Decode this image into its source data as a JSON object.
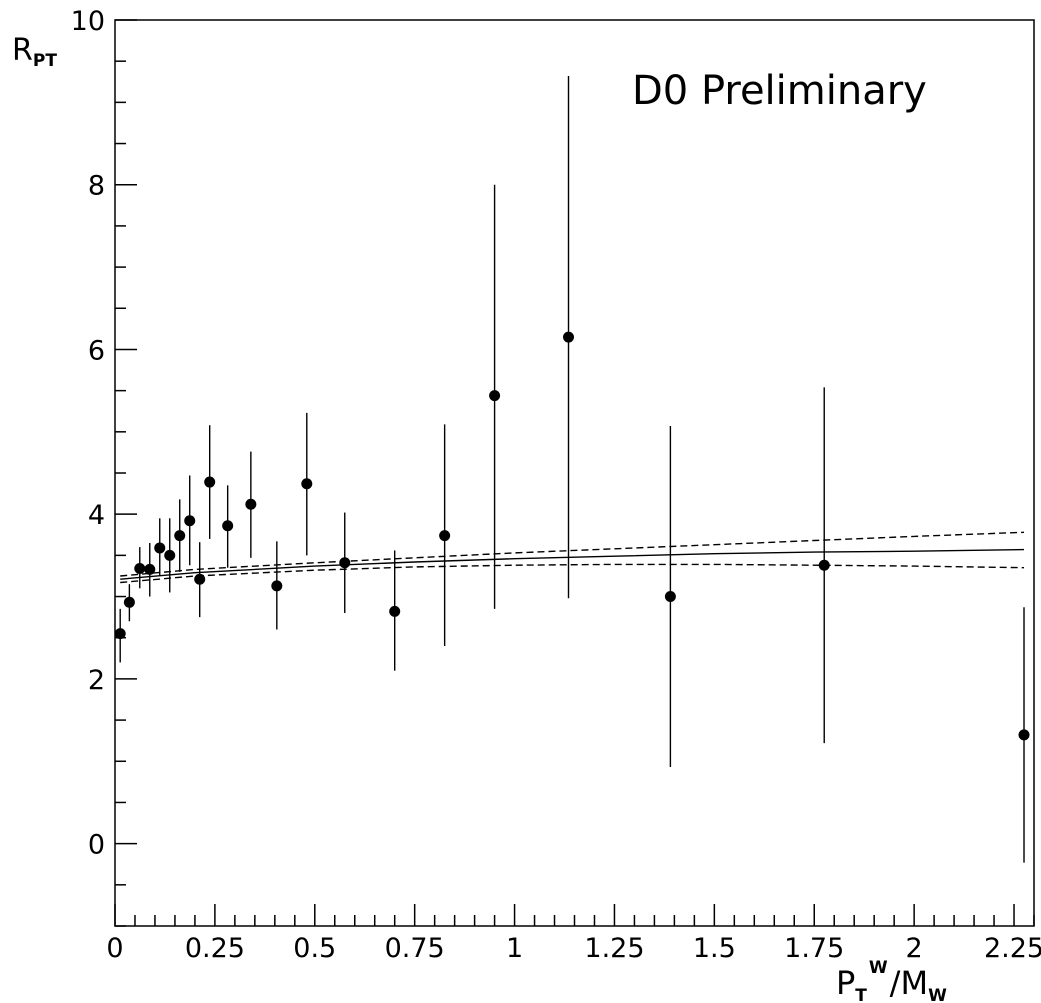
{
  "chart_data": {
    "type": "scatter",
    "title": "",
    "annotation": "D0 Preliminary",
    "xlabel": {
      "main": "P",
      "sub": "T",
      "sup": "W",
      "slash": "/",
      "main2": "M",
      "sub2": "W"
    },
    "ylabel": {
      "main": "R",
      "sub": "PT"
    },
    "xlim": [
      0,
      2.3
    ],
    "ylim": [
      -1,
      10
    ],
    "xticks": [
      {
        "value": 0,
        "label": "0"
      },
      {
        "value": 0.25,
        "label": "0.25"
      },
      {
        "value": 0.5,
        "label": "0.5"
      },
      {
        "value": 0.75,
        "label": "0.75"
      },
      {
        "value": 1,
        "label": "1"
      },
      {
        "value": 1.25,
        "label": "1.25"
      },
      {
        "value": 1.5,
        "label": "1.5"
      },
      {
        "value": 1.75,
        "label": "1.75"
      },
      {
        "value": 2,
        "label": "2"
      },
      {
        "value": 2.25,
        "label": "2.25"
      }
    ],
    "yticks": [
      {
        "value": 0,
        "label": "0"
      },
      {
        "value": 2,
        "label": "2"
      },
      {
        "value": 4,
        "label": "4"
      },
      {
        "value": 6,
        "label": "6"
      },
      {
        "value": 8,
        "label": "8"
      },
      {
        "value": 10,
        "label": "10"
      }
    ],
    "grid": false,
    "series": [
      {
        "kind": "points_with_error_bars",
        "points": [
          {
            "x": 0.013,
            "y": 2.55,
            "yerr_low": 2.2,
            "yerr_high": 2.85
          },
          {
            "x": 0.036,
            "y": 2.93,
            "yerr_low": 2.7,
            "yerr_high": 3.15
          },
          {
            "x": 0.062,
            "y": 3.34,
            "yerr_low": 3.1,
            "yerr_high": 3.6
          },
          {
            "x": 0.087,
            "y": 3.33,
            "yerr_low": 3.0,
            "yerr_high": 3.65
          },
          {
            "x": 0.112,
            "y": 3.59,
            "yerr_low": 3.25,
            "yerr_high": 3.95
          },
          {
            "x": 0.137,
            "y": 3.5,
            "yerr_low": 3.05,
            "yerr_high": 3.95
          },
          {
            "x": 0.162,
            "y": 3.74,
            "yerr_low": 3.3,
            "yerr_high": 4.18
          },
          {
            "x": 0.187,
            "y": 3.92,
            "yerr_low": 3.38,
            "yerr_high": 4.47
          },
          {
            "x": 0.212,
            "y": 3.21,
            "yerr_low": 2.75,
            "yerr_high": 3.66
          },
          {
            "x": 0.237,
            "y": 4.39,
            "yerr_low": 3.7,
            "yerr_high": 5.08
          },
          {
            "x": 0.282,
            "y": 3.86,
            "yerr_low": 3.35,
            "yerr_high": 4.35
          },
          {
            "x": 0.34,
            "y": 4.12,
            "yerr_low": 3.47,
            "yerr_high": 4.76
          },
          {
            "x": 0.405,
            "y": 3.13,
            "yerr_low": 2.6,
            "yerr_high": 3.67
          },
          {
            "x": 0.48,
            "y": 4.37,
            "yerr_low": 3.5,
            "yerr_high": 5.23
          },
          {
            "x": 0.575,
            "y": 3.41,
            "yerr_low": 2.8,
            "yerr_high": 4.02
          },
          {
            "x": 0.7,
            "y": 2.82,
            "yerr_low": 2.1,
            "yerr_high": 3.56
          },
          {
            "x": 0.825,
            "y": 3.74,
            "yerr_low": 2.4,
            "yerr_high": 5.09
          },
          {
            "x": 0.95,
            "y": 5.44,
            "yerr_low": 2.85,
            "yerr_high": 8.0
          },
          {
            "x": 1.135,
            "y": 6.15,
            "yerr_low": 2.98,
            "yerr_high": 9.32
          },
          {
            "x": 1.39,
            "y": 3.0,
            "yerr_low": 0.93,
            "yerr_high": 5.07
          },
          {
            "x": 1.775,
            "y": 3.38,
            "yerr_low": 1.22,
            "yerr_high": 5.54
          },
          {
            "x": 2.275,
            "y": 1.32,
            "yerr_low": -0.23,
            "yerr_high": 2.87
          }
        ]
      },
      {
        "kind": "curve",
        "style": "solid",
        "points": [
          {
            "x": 0.013,
            "y": 3.21
          },
          {
            "x": 0.2,
            "y": 3.29
          },
          {
            "x": 0.5,
            "y": 3.37
          },
          {
            "x": 0.75,
            "y": 3.42
          },
          {
            "x": 1.0,
            "y": 3.46
          },
          {
            "x": 1.25,
            "y": 3.49
          },
          {
            "x": 1.5,
            "y": 3.52
          },
          {
            "x": 1.75,
            "y": 3.54
          },
          {
            "x": 2.0,
            "y": 3.55
          },
          {
            "x": 2.275,
            "y": 3.57
          }
        ]
      },
      {
        "kind": "curve",
        "style": "dashed",
        "points": [
          {
            "x": 0.013,
            "y": 3.25
          },
          {
            "x": 0.2,
            "y": 3.33
          },
          {
            "x": 0.5,
            "y": 3.41
          },
          {
            "x": 0.75,
            "y": 3.47
          },
          {
            "x": 1.0,
            "y": 3.53
          },
          {
            "x": 1.25,
            "y": 3.58
          },
          {
            "x": 1.5,
            "y": 3.63
          },
          {
            "x": 1.75,
            "y": 3.68
          },
          {
            "x": 2.0,
            "y": 3.73
          },
          {
            "x": 2.275,
            "y": 3.78
          }
        ]
      },
      {
        "kind": "curve",
        "style": "dashed",
        "points": [
          {
            "x": 0.013,
            "y": 3.17
          },
          {
            "x": 0.2,
            "y": 3.25
          },
          {
            "x": 0.5,
            "y": 3.32
          },
          {
            "x": 0.75,
            "y": 3.36
          },
          {
            "x": 1.0,
            "y": 3.38
          },
          {
            "x": 1.25,
            "y": 3.39
          },
          {
            "x": 1.5,
            "y": 3.39
          },
          {
            "x": 1.75,
            "y": 3.38
          },
          {
            "x": 2.0,
            "y": 3.37
          },
          {
            "x": 2.275,
            "y": 3.35
          }
        ]
      }
    ]
  }
}
